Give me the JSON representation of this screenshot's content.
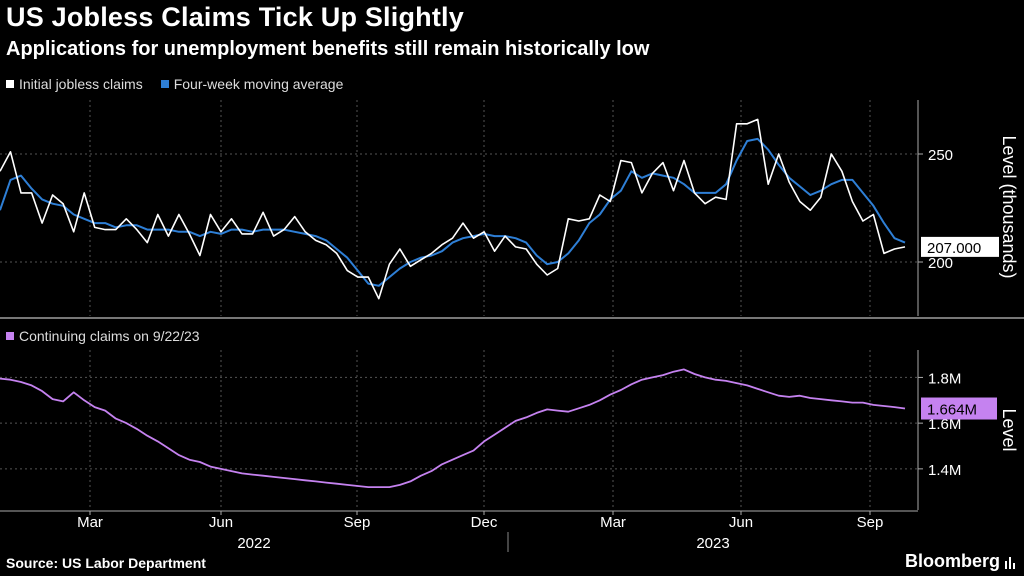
{
  "header": {
    "title": "US Jobless Claims Tick Up Slightly",
    "subtitle": "Applications for unemployment benefits still remain historically low"
  },
  "footer": {
    "source": "Source: US Labor Department",
    "brand": "Bloomberg"
  },
  "colors": {
    "background": "#000000",
    "initial": "#ffffff",
    "moving_avg": "#2e7fd6",
    "continuing": "#c582f0",
    "grid": "#555555"
  },
  "chart_data": [
    {
      "type": "line",
      "legend": [
        "Initial jobless claims",
        "Four-week moving average"
      ],
      "ylabel": "Level (thousands)",
      "ylim": [
        175,
        275
      ],
      "yticks": [
        200,
        250
      ],
      "last_value_label": "207.000",
      "series": [
        {
          "name": "Initial jobless claims",
          "values": [
            242,
            251,
            232,
            232,
            218,
            231,
            227,
            214,
            232,
            216,
            215,
            215,
            220,
            215,
            209,
            222,
            212,
            222,
            213,
            203,
            222,
            214,
            220,
            213,
            213,
            223,
            212,
            215,
            221,
            214,
            210,
            208,
            204,
            196,
            193,
            193,
            183,
            199,
            206,
            198,
            201,
            204,
            208,
            211,
            218,
            211,
            214,
            205,
            212,
            207,
            206,
            199,
            194,
            197,
            220,
            219,
            220,
            231,
            228,
            247,
            246,
            232,
            241,
            246,
            233,
            247,
            232,
            227,
            230,
            229,
            264,
            264,
            266,
            236,
            250,
            237,
            228,
            224,
            230,
            250,
            242,
            228,
            219,
            222,
            204,
            206,
            207
          ]
        },
        {
          "name": "Four-week moving average",
          "values": [
            224,
            238,
            240,
            234,
            229,
            227,
            226,
            222,
            220,
            218,
            218,
            216,
            217,
            217,
            215,
            215,
            215,
            214,
            214,
            212,
            214,
            213,
            215,
            215,
            214,
            215,
            215,
            215,
            214,
            213,
            212,
            210,
            206,
            202,
            196,
            190,
            189,
            193,
            197,
            200,
            202,
            203,
            205,
            209,
            211,
            212,
            213,
            212,
            212,
            211,
            209,
            203,
            199,
            200,
            204,
            210,
            218,
            222,
            229,
            233,
            242,
            239,
            241,
            240,
            239,
            236,
            232,
            232,
            232,
            236,
            247,
            256,
            257,
            252,
            245,
            239,
            235,
            231,
            233,
            236,
            238,
            238,
            232,
            226,
            218,
            211,
            209
          ]
        }
      ]
    },
    {
      "type": "line",
      "legend": [
        "Continuing claims on 9/22/23"
      ],
      "ylabel": "Level",
      "ylim": [
        1.22,
        1.92
      ],
      "yticks": [
        "1.4M",
        "1.6M",
        "1.8M"
      ],
      "ytick_values": [
        1.4,
        1.6,
        1.8
      ],
      "last_value_label": "1.664M",
      "series": [
        {
          "name": "Continuing claims on 9/22/23",
          "values": [
            1.795,
            1.79,
            1.78,
            1.765,
            1.74,
            1.705,
            1.695,
            1.735,
            1.7,
            1.67,
            1.655,
            1.62,
            1.6,
            1.575,
            1.545,
            1.52,
            1.49,
            1.46,
            1.44,
            1.43,
            1.41,
            1.4,
            1.39,
            1.38,
            1.375,
            1.37,
            1.365,
            1.36,
            1.355,
            1.35,
            1.345,
            1.34,
            1.335,
            1.33,
            1.325,
            1.32,
            1.32,
            1.32,
            1.33,
            1.345,
            1.37,
            1.39,
            1.42,
            1.44,
            1.46,
            1.48,
            1.52,
            1.55,
            1.58,
            1.61,
            1.625,
            1.645,
            1.66,
            1.655,
            1.65,
            1.665,
            1.68,
            1.7,
            1.725,
            1.745,
            1.77,
            1.79,
            1.8,
            1.81,
            1.825,
            1.835,
            1.815,
            1.8,
            1.79,
            1.785,
            1.775,
            1.765,
            1.75,
            1.735,
            1.72,
            1.715,
            1.72,
            1.71,
            1.705,
            1.7,
            1.695,
            1.69,
            1.69,
            1.68,
            1.675,
            1.67,
            1.664
          ]
        }
      ],
      "x_month_labels": [
        "Mar",
        "Jun",
        "Sep",
        "Dec",
        "Mar",
        "Jun",
        "Sep"
      ],
      "x_year_labels": [
        "2022",
        "2023"
      ]
    }
  ]
}
